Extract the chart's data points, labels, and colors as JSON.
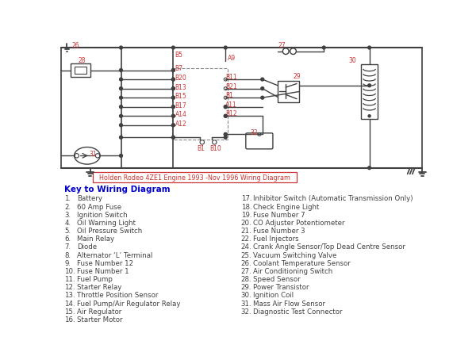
{
  "bg_color": "#ffffff",
  "wire_color": "#808080",
  "dark_wire": "#404040",
  "red_color": "#cc3333",
  "blue_color": "#0000cc",
  "key_text_color": "#404040",
  "subtitle": "Holden Rodeo 4ZE1 Engine 1993 -Nov 1996 Wiring Diagram",
  "key_title": "Key to Wiring Diagram",
  "left_items": [
    [
      "1.",
      "Battery"
    ],
    [
      "2.",
      "60 Amp Fuse"
    ],
    [
      "3.",
      "Ignition Switch"
    ],
    [
      "4.",
      "Oil Warning Light"
    ],
    [
      "5.",
      "Oil Pressure Switch"
    ],
    [
      "6.",
      "Main Relay"
    ],
    [
      "7.",
      "Diode"
    ],
    [
      "8.",
      "Alternator ‘L’ Terminal"
    ],
    [
      "9.",
      "Fuse Number 12"
    ],
    [
      "10.",
      "Fuse Number 1"
    ],
    [
      "11.",
      "Fuel Pump"
    ],
    [
      "12.",
      "Starter Relay"
    ],
    [
      "13.",
      "Throttle Position Sensor"
    ],
    [
      "14.",
      "Fuel Pump/Air Regulator Relay"
    ],
    [
      "15.",
      "Air Regulator"
    ],
    [
      "16.",
      "Starter Motor"
    ]
  ],
  "right_items": [
    [
      "17.",
      "Inhibitor Switch (Automatic Transmission Only)"
    ],
    [
      "18.",
      "Check Engine Light"
    ],
    [
      "19.",
      "Fuse Number 7"
    ],
    [
      "20.",
      "CO Adjuster Potentiometer"
    ],
    [
      "21.",
      "Fuse Number 3"
    ],
    [
      "22.",
      "Fuel Injectors"
    ],
    [
      "24.",
      "Crank Angle Sensor/Top Dead Centre Sensor"
    ],
    [
      "25.",
      "Vacuum Switching Valve"
    ],
    [
      "26.",
      "Coolant Temperature Sensor"
    ],
    [
      "27.",
      "Air Conditioning Switch"
    ],
    [
      "28.",
      "Speed Sensor"
    ],
    [
      "29.",
      "Power Transistor"
    ],
    [
      "30.",
      "Ignition Coil"
    ],
    [
      "31.",
      "Mass Air Flow Sensor"
    ],
    [
      "32.",
      "Diagnostic Test Connector"
    ],
    [
      "",
      ""
    ]
  ]
}
